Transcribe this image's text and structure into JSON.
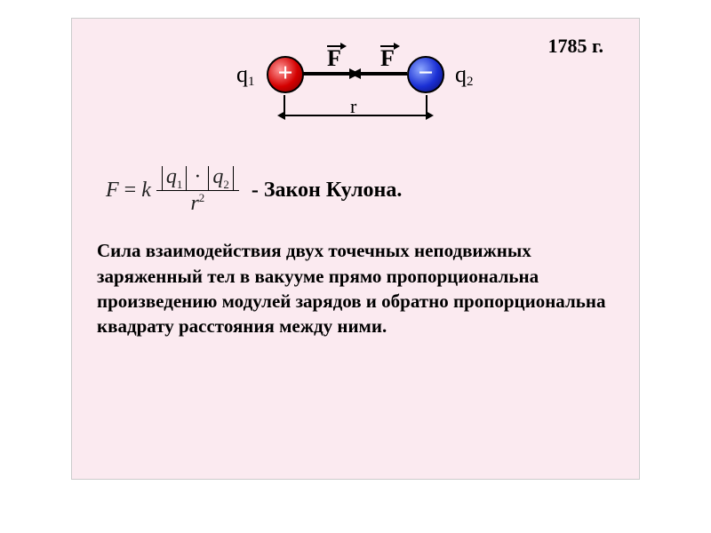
{
  "slide": {
    "background_color": "#fbeaf0",
    "border_color": "#cccccc",
    "year": "1785 г.",
    "year_fontsize": 22,
    "year_color": "#000000"
  },
  "diagram": {
    "q1_label_main": "q",
    "q1_label_sub": "1",
    "q2_label_main": "q",
    "q2_label_sub": "2",
    "F1_label": "F",
    "F2_label": "F",
    "r_label": "r",
    "plus_symbol": "+",
    "minus_symbol": "−",
    "charge_pos_color": "#d40000",
    "charge_neg_color": "#1a2fd4",
    "arrow_color": "#000000"
  },
  "formula": {
    "F": "F",
    "equals": "=",
    "k": "k",
    "q1": "q",
    "q1_sub": "1",
    "dot": "·",
    "q2": "q",
    "q2_sub": "2",
    "r": "r",
    "r_sup": "2",
    "fontsize": 24
  },
  "law_name": {
    "text": "- Закон Кулона.",
    "fontsize": 24
  },
  "definition": {
    "text": "Сила взаимодействия двух точечных неподвижных заряженный тел в вакууме прямо пропорциональна произведению модулей зарядов и обратно пропорциональна квадрату расстояния между ними.",
    "fontsize": 21,
    "color": "#000000"
  }
}
